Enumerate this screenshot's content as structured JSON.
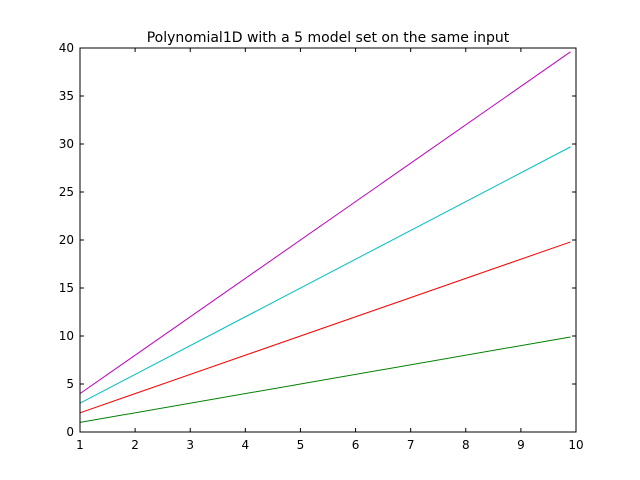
{
  "chart_data": {
    "type": "line",
    "title": "Polynomial1D with a 5 model set on the same input",
    "xlabel": "",
    "ylabel": "",
    "xlim": [
      1,
      10
    ],
    "ylim": [
      0,
      40
    ],
    "xticks": [
      1,
      2,
      3,
      4,
      5,
      6,
      7,
      8,
      9,
      10
    ],
    "yticks": [
      0,
      5,
      10,
      15,
      20,
      25,
      30,
      35,
      40
    ],
    "grid": false,
    "legend": false,
    "x": [
      1,
      9.9
    ],
    "series": [
      {
        "values": [
          0,
          0
        ],
        "color": "#0000ff"
      },
      {
        "values": [
          1,
          9.9
        ],
        "color": "#008000"
      },
      {
        "values": [
          2,
          19.8
        ],
        "color": "#ff0000"
      },
      {
        "values": [
          3,
          29.7
        ],
        "color": "#00bfbf"
      },
      {
        "values": [
          4,
          39.6
        ],
        "color": "#bf00bf"
      }
    ]
  }
}
